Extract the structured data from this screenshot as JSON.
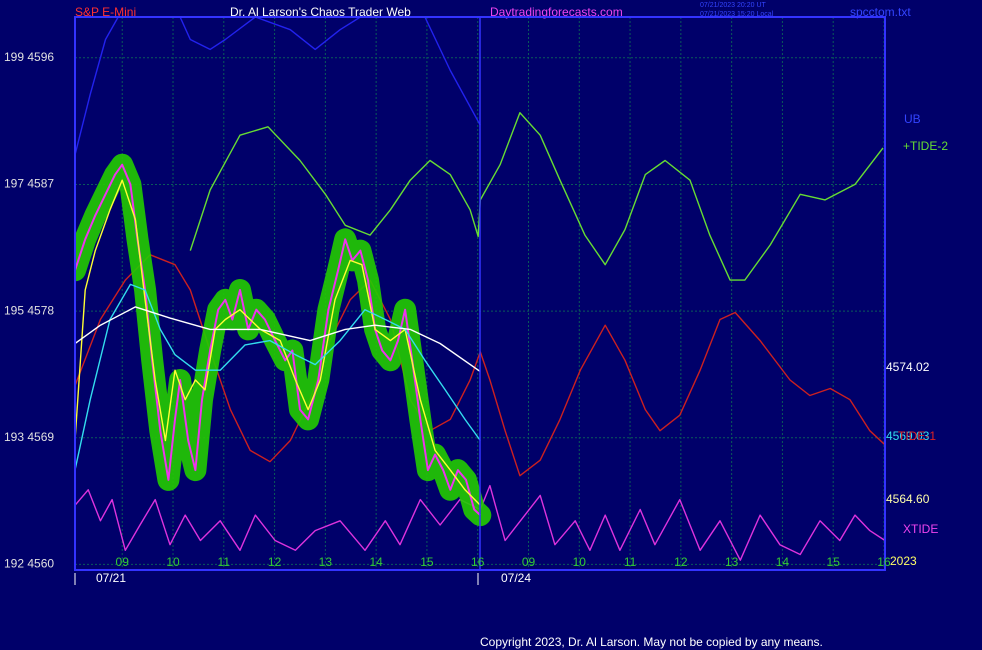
{
  "chart_data": {
    "type": "line",
    "title": "Dr. Al Larson's Chaos Trader Web",
    "instrument": "S&P E-Mini",
    "site": "Daytradingforecasts.com",
    "stamp": [
      "07/21/2023 20:20 UT",
      "07/21/2023 15:20 Local"
    ],
    "file": "spcctom.txt",
    "copyright": "Copyright 2023, Dr. Al Larson. May not be copied by any means.",
    "date_labels": [
      "07/21",
      "07/24"
    ],
    "annotations": [
      {
        "text": "UB",
        "color": "#3344ff"
      },
      {
        "text": "+TIDE-2",
        "color": "#66dd33"
      },
      {
        "text": "4574.02",
        "color": "#ffffff"
      },
      {
        "text": "4569.03",
        "color": "#33ddee"
      },
      {
        "text": "TIDE-1",
        "color": "#dd2222"
      },
      {
        "text": "4564.60",
        "color": "#ffffaa"
      },
      {
        "text": "XTIDE",
        "color": "#ee44ee"
      },
      {
        "text": "2023",
        "color": "#ffff66"
      }
    ],
    "xlim": [
      -0.93,
      15.02
    ],
    "xticks": [
      {
        "value": 0,
        "label": "09"
      },
      {
        "value": 1,
        "label": "10"
      },
      {
        "value": 2,
        "label": "11"
      },
      {
        "value": 3,
        "label": "12"
      },
      {
        "value": 4,
        "label": "13"
      },
      {
        "value": 5,
        "label": "14"
      },
      {
        "value": 6,
        "label": "15"
      },
      {
        "value": 7,
        "label": "16"
      },
      {
        "value": 8,
        "label": "09"
      },
      {
        "value": 9,
        "label": "10"
      },
      {
        "value": 10,
        "label": "11"
      },
      {
        "value": 11,
        "label": "12"
      },
      {
        "value": 12,
        "label": "13"
      },
      {
        "value": 13,
        "label": "14"
      },
      {
        "value": 14,
        "label": "15"
      },
      {
        "value": 15,
        "label": "16"
      }
    ],
    "ylim": [
      4559.6,
      4598.9
    ],
    "yticks": [
      {
        "value": 4596,
        "label": "199 4596"
      },
      {
        "value": 4587,
        "label": "197 4587"
      },
      {
        "value": 4578,
        "label": "195 4578"
      },
      {
        "value": 4569,
        "label": "193 4569"
      },
      {
        "value": 4560,
        "label": "192 4560"
      }
    ],
    "grid": true,
    "series": [
      {
        "name": "UB",
        "color": "#2222ee",
        "x": [
          -0.93,
          -0.63,
          -0.33,
          -0.08,
          null,
          1.14,
          1.34,
          1.73,
          2.03,
          2.62,
          3.31,
          3.8,
          4.29,
          4.69,
          null,
          5.96,
          6.46,
          7.05
        ],
        "values": [
          4589.1,
          4593.4,
          4597.3,
          4598.9,
          null,
          4598.9,
          4597.3,
          4596.6,
          4597.3,
          4598.9,
          4598.0,
          4596.6,
          4598.0,
          4598.9,
          null,
          4598.9,
          4595.1,
          4591.2
        ]
      },
      {
        "name": "+TIDE-2",
        "color": "#66dd33",
        "x": [
          1.34,
          1.73,
          2.32,
          2.87,
          3.5,
          4.0,
          4.39,
          4.88,
          5.28,
          5.67,
          6.06,
          6.46,
          6.85,
          7.01,
          7.05,
          7.44,
          7.83,
          8.23,
          8.62,
          9.11,
          9.51,
          9.9,
          10.3,
          10.69,
          11.18,
          11.57,
          11.97,
          12.26,
          12.76,
          13.35,
          13.84,
          14.43,
          14.98
        ],
        "values": [
          4582.3,
          4586.6,
          4590.5,
          4591.1,
          4588.7,
          4586.3,
          4584.1,
          4583.4,
          4585.2,
          4587.3,
          4588.7,
          4587.7,
          4585.2,
          4583.3,
          4585.9,
          4588.4,
          4592.1,
          4590.5,
          4587.3,
          4583.4,
          4581.3,
          4583.8,
          4587.7,
          4588.7,
          4587.3,
          4583.4,
          4580.2,
          4580.2,
          4582.7,
          4586.3,
          4585.9,
          4587.0,
          4589.6
        ]
      },
      {
        "name": "TIDE-1",
        "color": "#cc2020",
        "x": [
          -0.93,
          -0.43,
          0.06,
          0.55,
          1.04,
          1.34,
          1.73,
          2.13,
          2.52,
          2.91,
          3.31,
          3.7,
          4.09,
          4.49,
          4.88,
          5.28,
          5.67,
          6.06,
          6.46,
          6.85,
          7.05,
          7.24,
          7.54,
          7.83,
          8.23,
          8.62,
          9.02,
          9.51,
          9.9,
          10.3,
          10.59,
          10.98,
          11.38,
          11.77,
          12.07,
          12.56,
          13.15,
          13.54,
          13.94,
          14.33,
          14.72,
          15.02
        ],
        "values": [
          4572.7,
          4577.4,
          4580.2,
          4582.0,
          4581.3,
          4579.5,
          4575.2,
          4571.0,
          4568.1,
          4567.3,
          4568.8,
          4571.7,
          4575.9,
          4578.8,
          4580.2,
          4577.4,
          4571.7,
          4569.5,
          4570.3,
          4573.1,
          4575.1,
          4573.1,
          4569.5,
          4566.3,
          4567.4,
          4570.3,
          4573.8,
          4577.0,
          4574.5,
          4571.0,
          4569.5,
          4570.6,
          4573.8,
          4577.4,
          4577.9,
          4575.9,
          4573.1,
          4572.0,
          4572.5,
          4571.7,
          4569.5,
          4568.5
        ]
      },
      {
        "name": "XTIDE",
        "color": "#dd33dd",
        "x": [
          -0.93,
          -0.67,
          -0.43,
          -0.2,
          0.06,
          0.35,
          0.65,
          0.94,
          1.24,
          1.54,
          1.93,
          2.32,
          2.62,
          3.01,
          3.41,
          3.8,
          4.29,
          4.78,
          5.18,
          5.47,
          5.87,
          6.26,
          6.65,
          7.05,
          7.24,
          7.54,
          7.93,
          8.23,
          8.52,
          8.92,
          9.21,
          9.51,
          9.8,
          10.2,
          10.49,
          10.98,
          11.38,
          11.77,
          12.17,
          12.56,
          12.95,
          13.35,
          13.74,
          14.13,
          14.43,
          14.72,
          15.02
        ],
        "values": [
          4564.2,
          4565.3,
          4563.1,
          4564.6,
          4561.0,
          4562.8,
          4564.6,
          4561.4,
          4563.5,
          4561.7,
          4563.1,
          4561.0,
          4563.5,
          4561.7,
          4561.0,
          4562.4,
          4563.1,
          4561.0,
          4563.1,
          4561.4,
          4564.6,
          4562.8,
          4564.6,
          4563.9,
          4565.6,
          4561.7,
          4563.5,
          4564.9,
          4561.4,
          4563.1,
          4561.0,
          4563.5,
          4561.0,
          4563.9,
          4561.4,
          4564.6,
          4561.0,
          4563.1,
          4560.3,
          4563.5,
          4561.4,
          4560.7,
          4563.1,
          4561.7,
          4563.5,
          4562.4,
          4561.7
        ]
      },
      {
        "color": "#ee33ee",
        "glow": "#22cc00",
        "x": [
          -0.93,
          -0.73,
          -0.53,
          -0.33,
          -0.14,
          0,
          0.16,
          0.3,
          0.45,
          0.59,
          0.75,
          0.91,
          1.04,
          1.14,
          1.3,
          1.44,
          1.57,
          1.73,
          1.89,
          2.03,
          2.17,
          2.32,
          2.48,
          2.64,
          2.81,
          3.01,
          3.21,
          3.35,
          3.5,
          3.66,
          3.86,
          4.06,
          4.25,
          4.39,
          4.53,
          4.69,
          4.84,
          4.98,
          5.12,
          5.28,
          5.43,
          5.57,
          5.71,
          5.87,
          6.02,
          6.16,
          6.32,
          6.46,
          6.61,
          6.77,
          6.93,
          7.05
        ],
        "values": [
          4580.9,
          4583.1,
          4584.8,
          4586.3,
          4587.7,
          4588.4,
          4587.0,
          4583.1,
          4579.5,
          4574.5,
          4569.5,
          4566.0,
          4570.3,
          4573.1,
          4568.8,
          4566.7,
          4571.7,
          4575.2,
          4578.1,
          4578.8,
          4577.4,
          4579.5,
          4576.7,
          4578.1,
          4577.4,
          4575.9,
          4574.5,
          4575.2,
          4571.0,
          4570.3,
          4573.1,
          4578.1,
          4580.9,
          4583.1,
          4581.6,
          4582.3,
          4580.2,
          4576.7,
          4575.2,
          4574.5,
          4575.9,
          4578.1,
          4574.5,
          4570.3,
          4566.7,
          4567.8,
          4566.7,
          4565.3,
          4566.7,
          4566.0,
          4563.9,
          4563.5
        ]
      },
      {
        "color": "#ffff33",
        "x": [
          -0.93,
          -0.73,
          -0.53,
          -0.24,
          0,
          0.26,
          0.45,
          0.65,
          0.85,
          1.04,
          1.24,
          1.44,
          1.63,
          1.83,
          2.03,
          2.32,
          2.72,
          3.11,
          3.41,
          3.66,
          3.9,
          4.19,
          4.49,
          4.72,
          4.98,
          5.28,
          5.57,
          5.87,
          6.16,
          6.46,
          6.75,
          7.05
        ],
        "values": [
          4568.8,
          4579.5,
          4582.3,
          4585.2,
          4587.3,
          4584.5,
          4578.8,
          4573.1,
          4568.8,
          4573.8,
          4571.7,
          4573.1,
          4572.4,
          4576.7,
          4577.4,
          4578.1,
          4576.7,
          4575.9,
          4573.1,
          4571.0,
          4573.1,
          4578.8,
          4581.6,
          4581.3,
          4576.7,
          4575.9,
          4576.7,
          4571.7,
          4568.1,
          4566.7,
          4565.3,
          4564.2
        ]
      },
      {
        "color": "#33ddee",
        "x": [
          -0.93,
          -0.63,
          -0.24,
          0.16,
          0.45,
          0.75,
          1.04,
          1.44,
          1.93,
          2.42,
          2.91,
          3.41,
          3.8,
          4.29,
          4.78,
          5.18,
          5.57,
          5.96,
          6.36,
          6.75,
          7.05
        ],
        "values": [
          4566.7,
          4571.7,
          4577.4,
          4579.9,
          4579.5,
          4576.7,
          4574.9,
          4573.8,
          4573.8,
          4575.6,
          4575.9,
          4574.9,
          4574.2,
          4575.9,
          4578.1,
          4577.4,
          4576.7,
          4574.5,
          4572.4,
          4570.3,
          4568.8
        ]
      },
      {
        "color": "#ffffff",
        "x": [
          -0.93,
          -0.43,
          0.26,
          0.94,
          1.73,
          2.72,
          3.7,
          4.39,
          4.98,
          5.67,
          6.26,
          7.05
        ],
        "values": [
          4575.7,
          4577.0,
          4578.3,
          4577.5,
          4576.7,
          4576.7,
          4575.9,
          4576.7,
          4577.0,
          4576.7,
          4575.7,
          4573.7
        ]
      }
    ]
  }
}
